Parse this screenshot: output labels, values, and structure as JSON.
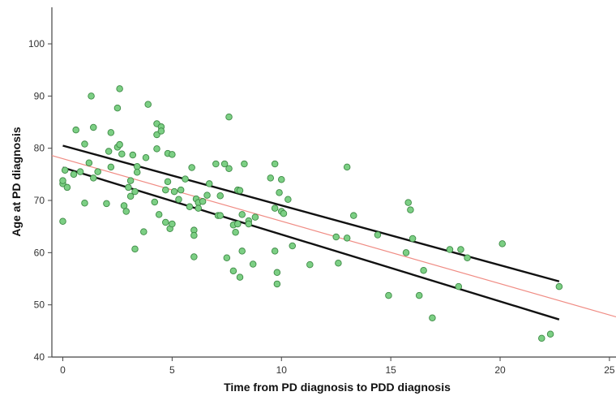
{
  "chart_data": {
    "type": "scatter",
    "title": "",
    "xlabel": "Time from PD diagnosis to PDD diagnosis",
    "ylabel": "Age at PD diagnosis",
    "xlim": [
      -0.5,
      25.3
    ],
    "ylim": [
      40,
      107
    ],
    "xticks": [
      0,
      5,
      10,
      15,
      20,
      25
    ],
    "yticks": [
      40,
      50,
      60,
      70,
      80,
      90,
      100
    ],
    "grid": false,
    "legend": "none",
    "colors": {
      "point_fill": "#7ccf84",
      "point_stroke": "#3d8a45",
      "fit_line": "#f08c84",
      "confidence_bands": "#111111",
      "axis": "#444444"
    },
    "points": [
      [
        0.0,
        66.0
      ],
      [
        0.0,
        73.2
      ],
      [
        0.0,
        73.8
      ],
      [
        0.1,
        75.8
      ],
      [
        0.2,
        72.5
      ],
      [
        0.5,
        75.0
      ],
      [
        0.6,
        83.5
      ],
      [
        0.8,
        75.5
      ],
      [
        1.0,
        80.8
      ],
      [
        1.0,
        69.5
      ],
      [
        1.2,
        77.2
      ],
      [
        1.3,
        90.0
      ],
      [
        1.4,
        84.0
      ],
      [
        1.4,
        74.3
      ],
      [
        1.6,
        75.5
      ],
      [
        2.0,
        69.4
      ],
      [
        2.1,
        79.4
      ],
      [
        2.2,
        76.4
      ],
      [
        2.2,
        83.0
      ],
      [
        2.5,
        87.7
      ],
      [
        2.5,
        80.2
      ],
      [
        2.6,
        91.4
      ],
      [
        2.6,
        80.7
      ],
      [
        2.7,
        78.9
      ],
      [
        2.8,
        69.0
      ],
      [
        2.9,
        67.9
      ],
      [
        3.0,
        72.5
      ],
      [
        3.1,
        70.8
      ],
      [
        3.1,
        73.8
      ],
      [
        3.2,
        78.7
      ],
      [
        3.3,
        60.7
      ],
      [
        3.3,
        71.7
      ],
      [
        3.4,
        76.5
      ],
      [
        3.4,
        75.4
      ],
      [
        3.7,
        64.0
      ],
      [
        3.8,
        78.2
      ],
      [
        3.9,
        88.4
      ],
      [
        4.2,
        69.7
      ],
      [
        4.3,
        82.6
      ],
      [
        4.3,
        79.9
      ],
      [
        4.3,
        84.7
      ],
      [
        4.4,
        67.3
      ],
      [
        4.5,
        84.1
      ],
      [
        4.5,
        83.3
      ],
      [
        4.7,
        65.8
      ],
      [
        4.7,
        72.0
      ],
      [
        4.8,
        79.0
      ],
      [
        4.8,
        73.6
      ],
      [
        4.9,
        64.6
      ],
      [
        5.0,
        65.5
      ],
      [
        5.0,
        78.8
      ],
      [
        5.1,
        71.7
      ],
      [
        5.3,
        70.2
      ],
      [
        5.4,
        72.0
      ],
      [
        5.6,
        74.1
      ],
      [
        5.8,
        68.8
      ],
      [
        5.9,
        76.3
      ],
      [
        6.0,
        64.3
      ],
      [
        6.0,
        63.3
      ],
      [
        6.0,
        59.2
      ],
      [
        6.1,
        70.3
      ],
      [
        6.2,
        69.6
      ],
      [
        6.2,
        68.5
      ],
      [
        6.4,
        69.8
      ],
      [
        6.6,
        71.0
      ],
      [
        6.7,
        73.2
      ],
      [
        7.0,
        77.0
      ],
      [
        7.1,
        67.1
      ],
      [
        7.2,
        67.1
      ],
      [
        7.2,
        70.9
      ],
      [
        7.4,
        77.0
      ],
      [
        7.5,
        59.0
      ],
      [
        7.6,
        86.0
      ],
      [
        7.6,
        76.1
      ],
      [
        7.8,
        56.5
      ],
      [
        7.8,
        65.3
      ],
      [
        7.9,
        63.9
      ],
      [
        8.0,
        72.0
      ],
      [
        8.0,
        65.5
      ],
      [
        8.1,
        55.3
      ],
      [
        8.1,
        71.9
      ],
      [
        8.2,
        67.3
      ],
      [
        8.2,
        60.3
      ],
      [
        8.3,
        77.0
      ],
      [
        8.5,
        66.1
      ],
      [
        8.5,
        65.5
      ],
      [
        8.7,
        57.8
      ],
      [
        8.8,
        66.8
      ],
      [
        9.5,
        74.3
      ],
      [
        9.7,
        77.0
      ],
      [
        9.7,
        68.5
      ],
      [
        9.7,
        60.3
      ],
      [
        9.8,
        56.2
      ],
      [
        9.8,
        54.0
      ],
      [
        9.9,
        71.5
      ],
      [
        10.0,
        74.0
      ],
      [
        10.0,
        67.9
      ],
      [
        10.1,
        67.5
      ],
      [
        10.3,
        70.2
      ],
      [
        10.5,
        61.3
      ],
      [
        11.3,
        57.7
      ],
      [
        12.5,
        63.0
      ],
      [
        12.6,
        58.0
      ],
      [
        13.0,
        76.4
      ],
      [
        13.0,
        62.8
      ],
      [
        13.3,
        67.1
      ],
      [
        14.4,
        63.4
      ],
      [
        14.9,
        51.8
      ],
      [
        15.7,
        60.0
      ],
      [
        15.8,
        69.6
      ],
      [
        15.9,
        68.2
      ],
      [
        16.0,
        62.7
      ],
      [
        16.3,
        51.8
      ],
      [
        16.5,
        56.6
      ],
      [
        16.9,
        47.5
      ],
      [
        17.7,
        60.6
      ],
      [
        18.1,
        53.5
      ],
      [
        18.2,
        60.6
      ],
      [
        18.5,
        59.0
      ],
      [
        20.1,
        61.7
      ],
      [
        21.9,
        43.6
      ],
      [
        22.3,
        44.4
      ],
      [
        22.7,
        53.5
      ]
    ],
    "fit_line": {
      "x": [
        -0.5,
        25.3
      ],
      "y": [
        78.6,
        47.7
      ]
    },
    "confidence_band_upper": {
      "x": [
        0.0,
        22.7
      ],
      "y": [
        80.5,
        54.5
      ]
    },
    "confidence_band_lower": {
      "x": [
        0.0,
        22.7
      ],
      "y": [
        76.3,
        47.2
      ]
    }
  }
}
